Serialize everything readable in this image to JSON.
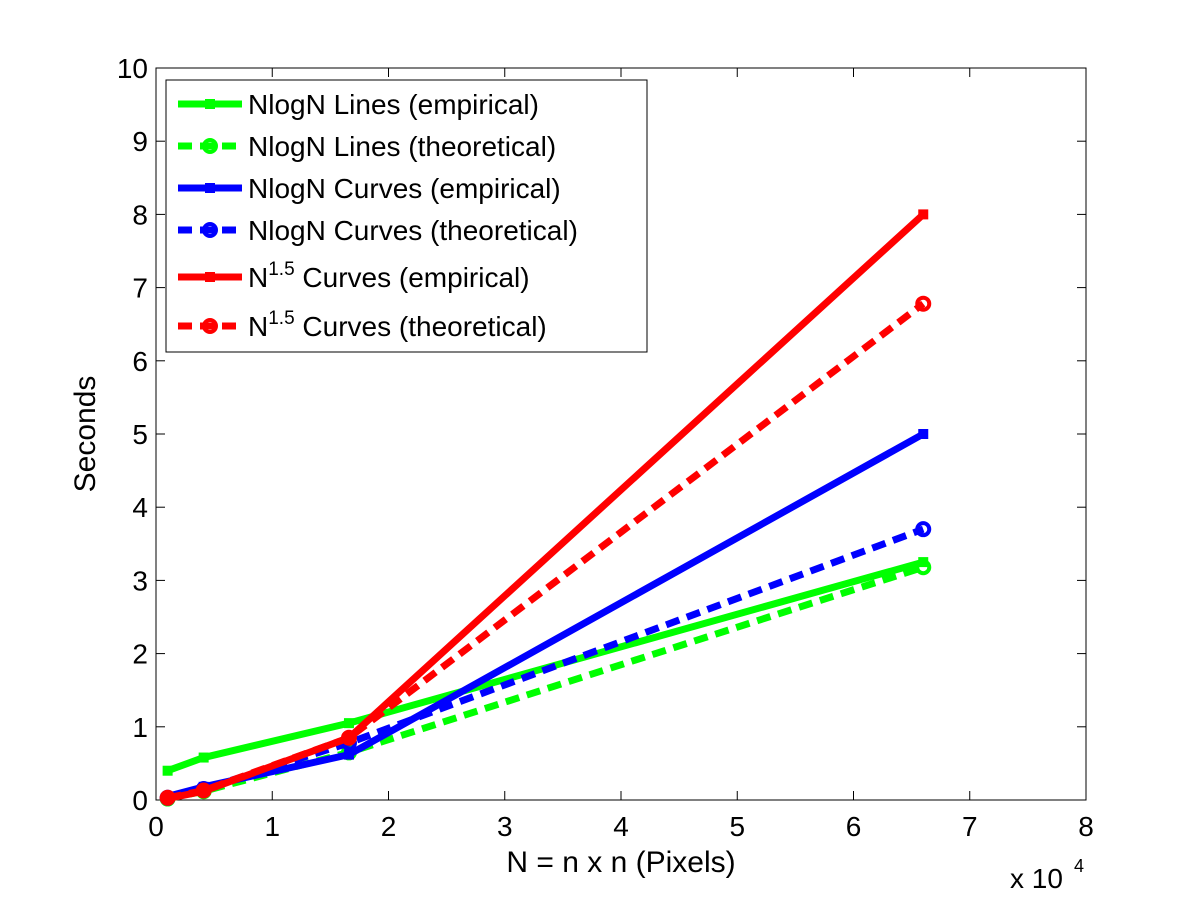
{
  "chart_data": {
    "type": "line",
    "title": "",
    "xlabel": "N = n x n (Pixels)",
    "ylabel": "Seconds",
    "x_multiplier_label": {
      "base": "x 10",
      "exponent": "4"
    },
    "xlim": [
      0,
      8
    ],
    "ylim": [
      0,
      10
    ],
    "x_ticks": [
      0,
      1,
      2,
      3,
      4,
      5,
      6,
      7,
      8
    ],
    "y_ticks": [
      0,
      1,
      2,
      3,
      4,
      5,
      6,
      7,
      8,
      9,
      10
    ],
    "x_tick_labels": [
      "0",
      "1",
      "2",
      "3",
      "4",
      "5",
      "6",
      "7",
      "8"
    ],
    "y_tick_labels": [
      "0",
      "1",
      "2",
      "3",
      "4",
      "5",
      "6",
      "7",
      "8",
      "9",
      "10"
    ],
    "grid": false,
    "legend_position": "top-left",
    "series": [
      {
        "name": "NlogN Lines (empirical)",
        "legend_parts": {
          "main": "NlogN Lines (empirical)",
          "sup": "",
          "rest": ""
        },
        "color": "#00ff00",
        "style": "solid",
        "marker": "square",
        "x": [
          0.1,
          0.41,
          1.66,
          6.6
        ],
        "y": [
          0.4,
          0.58,
          1.05,
          3.25
        ]
      },
      {
        "name": "NlogN Lines (theoretical)",
        "legend_parts": {
          "main": "NlogN Lines (theoretical)",
          "sup": "",
          "rest": ""
        },
        "color": "#00ff00",
        "style": "dashed",
        "marker": "circle",
        "x": [
          0.1,
          0.41,
          1.66,
          6.6
        ],
        "y": [
          0.02,
          0.12,
          0.65,
          3.18
        ]
      },
      {
        "name": "NlogN Curves (empirical)",
        "legend_parts": {
          "main": "NlogN Curves (empirical)",
          "sup": "",
          "rest": ""
        },
        "color": "#0000ff",
        "style": "solid",
        "marker": "square",
        "x": [
          0.1,
          0.41,
          1.66,
          6.6
        ],
        "y": [
          0.05,
          0.18,
          0.62,
          5.0
        ]
      },
      {
        "name": "NlogN Curves (theoretical)",
        "legend_parts": {
          "main": "NlogN Curves (theoretical)",
          "sup": "",
          "rest": ""
        },
        "color": "#0000ff",
        "style": "dashed",
        "marker": "circle",
        "x": [
          0.1,
          0.41,
          1.66,
          6.6
        ],
        "y": [
          0.03,
          0.15,
          0.78,
          3.7
        ]
      },
      {
        "name": "N^1.5 Curves (empirical)",
        "legend_parts": {
          "main": "N",
          "sup": "1.5",
          "rest": " Curves (empirical)"
        },
        "color": "#ff0000",
        "style": "solid",
        "marker": "square",
        "x": [
          0.1,
          0.41,
          1.66,
          6.6
        ],
        "y": [
          0.02,
          0.12,
          0.85,
          8.0
        ]
      },
      {
        "name": "N^1.5 Curves (theoretical)",
        "legend_parts": {
          "main": "N",
          "sup": "1.5",
          "rest": " Curves (theoretical)"
        },
        "color": "#ff0000",
        "style": "dashed",
        "marker": "circle",
        "x": [
          0.1,
          0.41,
          1.66,
          6.6
        ],
        "y": [
          0.03,
          0.13,
          0.85,
          6.78
        ]
      }
    ]
  }
}
